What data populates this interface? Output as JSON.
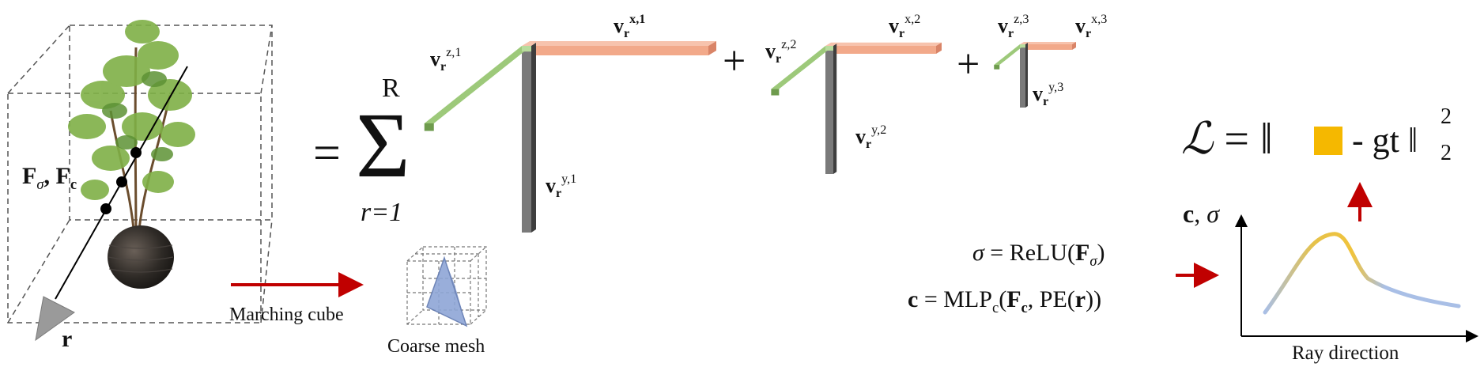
{
  "colors": {
    "green": "#9dc97a",
    "green_dark": "#6e9b4d",
    "orange": "#f2a98a",
    "orange_dark": "#d98467",
    "gray": "#7a7a7a",
    "gray_dark": "#3e3e3e",
    "red": "#c00000",
    "gold": "#f5b800",
    "curve_blue": "#a9bfe6",
    "curve_gold": "#f0c33c",
    "mesh_blue": "#7d95c9"
  },
  "scene": {
    "feature_label_F": "F",
    "feature_sub_sigma": "σ",
    "feature_sep": ", ",
    "feature_sub_c": "c",
    "ray_label": "r",
    "object_icon": "potted-plant-icon"
  },
  "equation": {
    "equals": "=",
    "sum_symbol": "Σ",
    "sum_upper": "R",
    "sum_lower": "r=1",
    "plus": "+"
  },
  "vectors": [
    {
      "base": "v",
      "sub": "r",
      "sup": "z,1"
    },
    {
      "base": "v",
      "sub": "r",
      "sup": "x,1"
    },
    {
      "base": "v",
      "sub": "r",
      "sup": "y,1"
    },
    {
      "base": "v",
      "sub": "r",
      "sup": "z,2"
    },
    {
      "base": "v",
      "sub": "r",
      "sup": "x,2"
    },
    {
      "base": "v",
      "sub": "r",
      "sup": "y,2"
    },
    {
      "base": "v",
      "sub": "r",
      "sup": "z,3"
    },
    {
      "base": "v",
      "sub": "r",
      "sup": "x,3"
    },
    {
      "base": "v",
      "sub": "r",
      "sup": "y,3"
    }
  ],
  "mesh": {
    "arrow_label": "Marching cube",
    "caption": "Coarse mesh"
  },
  "formulas": {
    "sigma_lhs": "σ",
    "eq": "=",
    "sigma_rhs_prefix": "ReLU(",
    "F": "F",
    "sigma_sub": "σ",
    "close": ")",
    "c_lhs": "c",
    "c_rhs_prefix": "MLP",
    "c_rhs_sub": "c",
    "open": "(",
    "c_sub": "c",
    "comma": ", PE(",
    "r": "r",
    "close2": "))"
  },
  "loss": {
    "L": "ℒ",
    "eq": "=",
    "norm": "‖",
    "minus_gt": "- gt",
    "sub": "2",
    "sup": "2"
  },
  "plot": {
    "ylabel_c": "c",
    "ylabel_sep": ", ",
    "ylabel_sigma": "σ",
    "xlabel": "Ray direction"
  }
}
